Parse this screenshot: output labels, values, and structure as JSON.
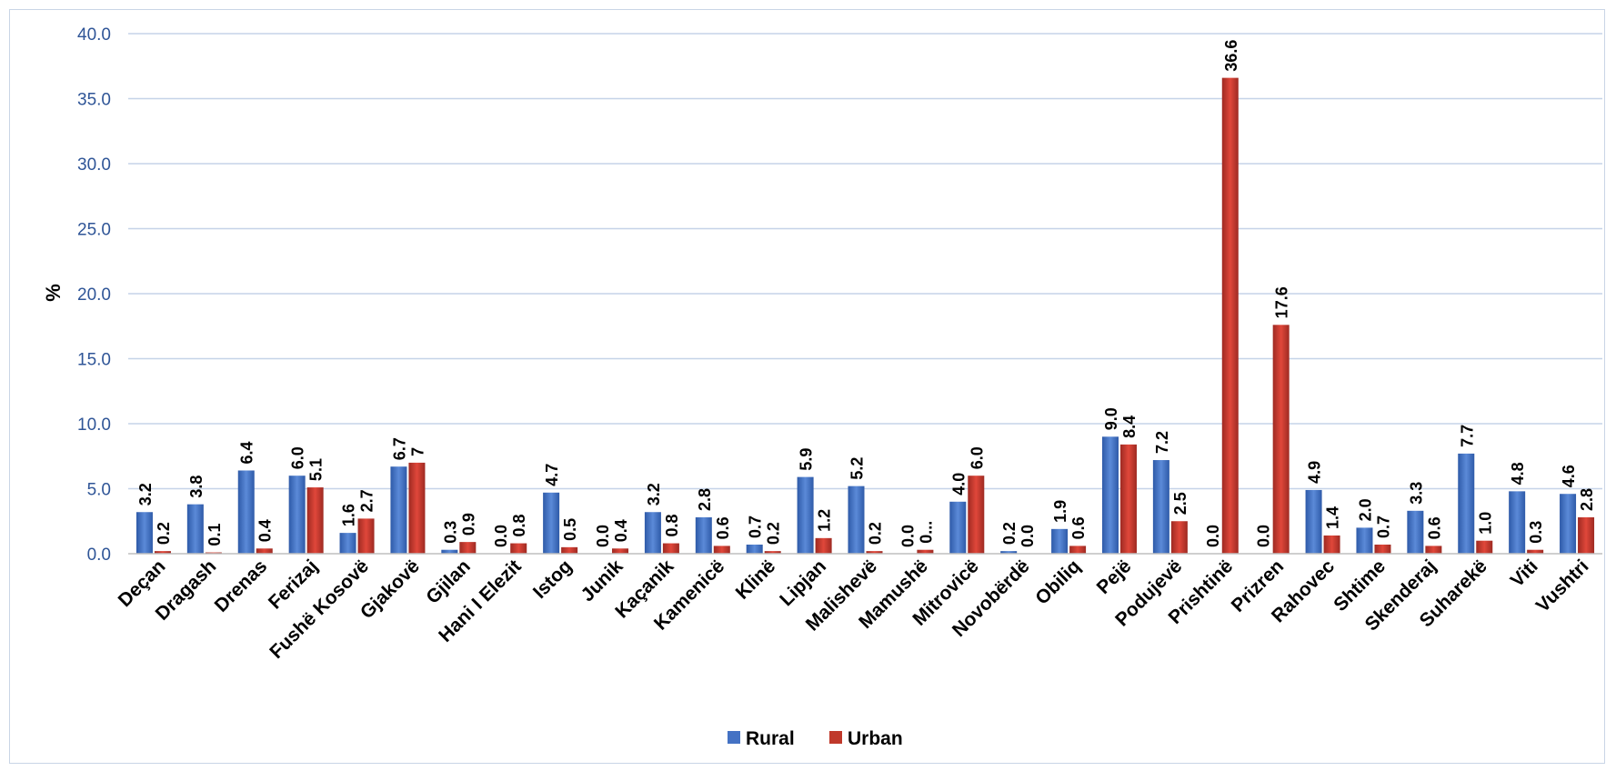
{
  "chart_data": {
    "type": "bar",
    "title": "",
    "xlabel": "",
    "ylabel": "%",
    "ylim": [
      0,
      40
    ],
    "yticks": [
      "0.0",
      "5.0",
      "10.0",
      "15.0",
      "20.0",
      "25.0",
      "30.0",
      "35.0",
      "40.0"
    ],
    "grid": true,
    "legend_position": "bottom",
    "categories": [
      "Deçan",
      "Dragash",
      "Drenas",
      "Ferizaj",
      "Fushë Kosovë",
      "Gjakovë",
      "Gjilan",
      "Hani I Elezit",
      "Istog",
      "Junik",
      "Kaçanik",
      "Kamenicë",
      "Klinë",
      "Lipjan",
      "Malishevë",
      "Mamushë",
      "Mitrovicë",
      "Novobërdë",
      "Obiliq",
      "Pejë",
      "Podujevë",
      "Prishtinë",
      "Prizren",
      "Rahovec",
      "Shtime",
      "Skenderaj",
      "Suharekë",
      "Viti",
      "Vushtri"
    ],
    "series": [
      {
        "name": "Rural",
        "color": "#4472c4",
        "values": [
          3.2,
          3.8,
          6.4,
          6.0,
          1.6,
          6.7,
          0.3,
          0.0,
          4.7,
          0.0,
          3.2,
          2.8,
          0.7,
          5.9,
          5.2,
          0.0,
          4.0,
          0.2,
          1.9,
          9.0,
          7.2,
          0.0,
          0.0,
          4.9,
          2.0,
          3.3,
          7.7,
          4.8,
          4.6
        ],
        "labels": [
          "3.2",
          "3.8",
          "6.4",
          "6.0",
          "1.6",
          "6.7",
          "0.3",
          "0.0",
          "4.7",
          "0.0",
          "3.2",
          "2.8",
          "0.7",
          "5.9",
          "5.2",
          "0.0",
          "4.0",
          "0.2",
          "1.9",
          "9.0",
          "7.2",
          "0.0",
          "0.0",
          "4.9",
          "2.0",
          "3.3",
          "7.7",
          "4.8",
          "4.6"
        ]
      },
      {
        "name": "Urban",
        "color": "#c0392b",
        "values": [
          0.2,
          0.1,
          0.4,
          5.1,
          2.7,
          7.0,
          0.9,
          0.8,
          0.5,
          0.4,
          0.8,
          0.6,
          0.2,
          1.2,
          0.2,
          0.3,
          6.0,
          0.0,
          0.6,
          8.4,
          2.5,
          36.6,
          17.6,
          1.4,
          0.7,
          0.6,
          1.0,
          0.3,
          2.8
        ],
        "labels": [
          "0.2",
          "0.1",
          "0.4",
          "5.1",
          "2.7",
          "7",
          "0.9",
          "0.8",
          "0.5",
          "0.4",
          "0.8",
          "0.6",
          "0.2",
          "1.2",
          "0.2",
          "0...",
          "6.0",
          "0.0",
          "0.6",
          "8.4",
          "2.5",
          "36.6",
          "17.6",
          "1.4",
          "0.7",
          "0.6",
          "1.0",
          "0.3",
          "2.8"
        ]
      }
    ]
  }
}
